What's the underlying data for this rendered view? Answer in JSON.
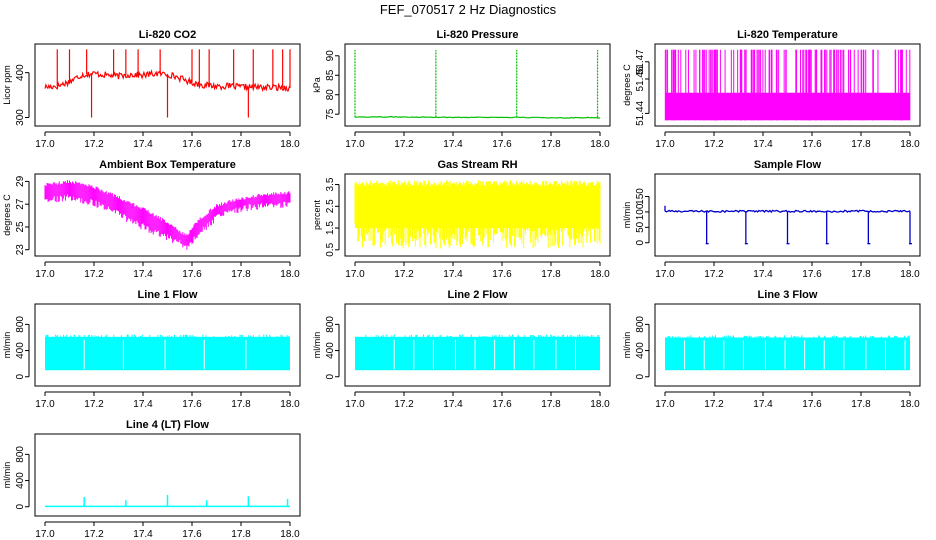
{
  "figure": {
    "title": "FEF_070517  2 Hz Diagnostics"
  },
  "chart_data": [
    {
      "type": "line",
      "title": "Li-820 CO2",
      "xlabel": "",
      "ylabel": "Licor ppm",
      "color": "#ff0000",
      "xlim": [
        17.0,
        18.0
      ],
      "ylim": [
        290,
        455
      ],
      "xticks": [
        17.0,
        17.2,
        17.4,
        17.6,
        17.8,
        18.0
      ],
      "xtick_labels": [
        "17.0",
        "17.2",
        "17.4",
        "17.6",
        "17.8",
        "18.0"
      ],
      "yticks": [
        300,
        400
      ],
      "ytick_labels": [
        "300",
        "400"
      ],
      "series": [
        {
          "x": [
            17.0,
            17.05,
            17.1,
            17.15,
            17.2,
            17.25,
            17.3,
            17.35,
            17.4,
            17.45,
            17.5,
            17.55,
            17.6,
            17.65,
            17.7,
            17.75,
            17.8,
            17.85,
            17.9,
            17.95,
            18.0
          ],
          "values": [
            368,
            370,
            380,
            395,
            398,
            395,
            392,
            396,
            394,
            398,
            397,
            388,
            378,
            372,
            370,
            370,
            368,
            368,
            367,
            367,
            366
          ]
        }
      ],
      "spikes": [
        17.05,
        17.1,
        17.17,
        17.19,
        17.28,
        17.33,
        17.38,
        17.47,
        17.5,
        17.6,
        17.63,
        17.67,
        17.77,
        17.83,
        17.85,
        17.93,
        17.97,
        18.0
      ]
    },
    {
      "type": "line",
      "title": "Li-820 Pressure",
      "xlabel": "",
      "ylabel": "kPa",
      "color": "#00c000",
      "xlim": [
        17.0,
        18.0
      ],
      "ylim": [
        73,
        92
      ],
      "xticks": [
        17.0,
        17.2,
        17.4,
        17.6,
        17.8,
        18.0
      ],
      "xtick_labels": [
        "17.0",
        "17.2",
        "17.4",
        "17.6",
        "17.8",
        "18.0"
      ],
      "yticks": [
        75,
        80,
        85,
        90
      ],
      "ytick_labels": [
        "75",
        "80",
        "85",
        "90"
      ],
      "series": [
        {
          "x": [
            17.0,
            17.2,
            17.4,
            17.6,
            17.8,
            18.0
          ],
          "values": [
            74.3,
            74.3,
            74.2,
            74.2,
            74.1,
            74.1
          ]
        }
      ],
      "spikes": [
        17.0,
        17.33,
        17.66,
        17.99
      ]
    },
    {
      "type": "bar",
      "title": "Li-820 Temperature",
      "xlabel": "",
      "ylabel": "degrees C",
      "color": "#ff00ff",
      "xlim": [
        17.0,
        18.0
      ],
      "ylim": [
        51.435,
        51.478
      ],
      "xticks": [
        17.0,
        17.2,
        17.4,
        17.6,
        17.8,
        18.0
      ],
      "xtick_labels": [
        "17.0",
        "17.2",
        "17.4",
        "17.6",
        "17.8",
        "18.0"
      ],
      "yticks": [
        51.44,
        51.46,
        51.47
      ],
      "ytick_labels": [
        "51.44",
        "51.46",
        "51.47"
      ],
      "levels": [
        51.436,
        51.452,
        51.477
      ]
    },
    {
      "type": "area",
      "title": "Ambient Box Temperature",
      "xlabel": "",
      "ylabel": "degrees C",
      "color": "#ff00ff",
      "xlim": [
        17.0,
        18.0
      ],
      "ylim": [
        22.8,
        29.3
      ],
      "xticks": [
        17.0,
        17.2,
        17.4,
        17.6,
        17.8,
        18.0
      ],
      "xtick_labels": [
        "17.0",
        "17.2",
        "17.4",
        "17.6",
        "17.8",
        "18.0"
      ],
      "yticks": [
        23,
        25,
        27,
        29
      ],
      "ytick_labels": [
        "23",
        "25",
        "27",
        "29"
      ],
      "series": [
        {
          "name": "upper",
          "x": [
            17.0,
            17.1,
            17.2,
            17.3,
            17.4,
            17.5,
            17.55,
            17.58,
            17.62,
            17.7,
            17.8,
            17.9,
            18.0
          ],
          "values": [
            28.7,
            29.0,
            28.5,
            27.6,
            26.6,
            25.4,
            24.6,
            24.3,
            25.5,
            26.9,
            27.5,
            27.9,
            28.0
          ]
        },
        {
          "name": "lower",
          "x": [
            17.0,
            17.1,
            17.2,
            17.3,
            17.4,
            17.5,
            17.55,
            17.58,
            17.62,
            17.7,
            17.8,
            17.9,
            18.0
          ],
          "values": [
            27.3,
            27.6,
            27.1,
            26.1,
            25.0,
            24.1,
            23.6,
            23.2,
            24.3,
            25.8,
            26.6,
            26.9,
            27.0
          ]
        }
      ]
    },
    {
      "type": "area",
      "title": "Gas Stream RH",
      "xlabel": "",
      "ylabel": "percent",
      "color": "#ffff00",
      "xlim": [
        17.0,
        18.0
      ],
      "ylim": [
        0.4,
        3.8
      ],
      "xticks": [
        17.0,
        17.2,
        17.4,
        17.6,
        17.8,
        18.0
      ],
      "xtick_labels": [
        "17.0",
        "17.2",
        "17.4",
        "17.6",
        "17.8",
        "18.0"
      ],
      "yticks": [
        0.5,
        1.5,
        2.5,
        3.5
      ],
      "ytick_labels": [
        "0.5",
        "1.5",
        "2.5",
        "3.5"
      ],
      "series": [
        {
          "name": "upper",
          "x": [
            17.0,
            18.0
          ],
          "values": [
            3.55,
            3.55
          ]
        },
        {
          "name": "lower",
          "x": [
            17.0,
            18.0
          ],
          "values": [
            0.55,
            0.55
          ]
        }
      ]
    },
    {
      "type": "line",
      "title": "Sample Flow",
      "xlabel": "",
      "ylabel": "ml/min",
      "color": "#0000cc",
      "xlim": [
        17.0,
        18.0
      ],
      "ylim": [
        -30,
        210
      ],
      "xticks": [
        17.0,
        17.2,
        17.4,
        17.6,
        17.8,
        18.0
      ],
      "xtick_labels": [
        "17.0",
        "17.2",
        "17.4",
        "17.6",
        "17.8",
        "18.0"
      ],
      "yticks": [
        0,
        50,
        100,
        150
      ],
      "ytick_labels": [
        "0",
        "50",
        "100",
        "150"
      ],
      "series": [
        {
          "x": [
            17.0,
            18.0
          ],
          "values": [
            102,
            102
          ]
        }
      ],
      "dips": [
        17.17,
        17.33,
        17.5,
        17.66,
        17.83,
        18.0
      ]
    },
    {
      "type": "area",
      "title": "Line 1 Flow",
      "xlabel": "",
      "ylabel": "ml/min",
      "color": "#00ffff",
      "xlim": [
        17.0,
        18.0
      ],
      "ylim": [
        -80,
        1050
      ],
      "xticks": [
        17.0,
        17.2,
        17.4,
        17.6,
        17.8,
        18.0
      ],
      "xtick_labels": [
        "17.0",
        "17.2",
        "17.4",
        "17.6",
        "17.8",
        "18.0"
      ],
      "yticks": [
        0,
        400,
        800
      ],
      "ytick_labels": [
        "0",
        "400",
        "800"
      ],
      "series": [
        {
          "name": "upper",
          "x": [
            17.0,
            18.0
          ],
          "values": [
            610,
            610
          ]
        },
        {
          "name": "lower",
          "x": [
            17.0,
            18.0
          ],
          "values": [
            100,
            100
          ]
        }
      ],
      "gaps": [
        17.16,
        17.32,
        17.49,
        17.65,
        17.82
      ]
    },
    {
      "type": "area",
      "title": "Line 2 Flow",
      "xlabel": "",
      "ylabel": "ml/min",
      "color": "#00ffff",
      "xlim": [
        17.0,
        18.0
      ],
      "ylim": [
        -80,
        1050
      ],
      "xticks": [
        17.0,
        17.2,
        17.4,
        17.6,
        17.8,
        18.0
      ],
      "xtick_labels": [
        "17.0",
        "17.2",
        "17.4",
        "17.6",
        "17.8",
        "18.0"
      ],
      "yticks": [
        0,
        400,
        800
      ],
      "ytick_labels": [
        "0",
        "400",
        "800"
      ],
      "series": [
        {
          "name": "upper",
          "x": [
            17.0,
            18.0
          ],
          "values": [
            610,
            610
          ]
        },
        {
          "name": "lower",
          "x": [
            17.0,
            18.0
          ],
          "values": [
            100,
            100
          ]
        }
      ],
      "gaps": [
        17.16,
        17.24,
        17.32,
        17.41,
        17.49,
        17.57,
        17.65,
        17.73,
        17.82,
        17.9
      ]
    },
    {
      "type": "area",
      "title": "Line 3 Flow",
      "xlabel": "",
      "ylabel": "ml/min",
      "color": "#00ffff",
      "xlim": [
        17.0,
        18.0
      ],
      "ylim": [
        -80,
        1050
      ],
      "xticks": [
        17.0,
        17.2,
        17.4,
        17.6,
        17.8,
        18.0
      ],
      "xtick_labels": [
        "17.0",
        "17.2",
        "17.4",
        "17.6",
        "17.8",
        "18.0"
      ],
      "yticks": [
        0,
        400,
        800
      ],
      "ytick_labels": [
        "0",
        "400",
        "800"
      ],
      "series": [
        {
          "name": "upper",
          "x": [
            17.0,
            18.0
          ],
          "values": [
            600,
            600
          ]
        },
        {
          "name": "lower",
          "x": [
            17.0,
            18.0
          ],
          "values": [
            100,
            100
          ]
        }
      ],
      "gaps": [
        17.08,
        17.16,
        17.24,
        17.32,
        17.41,
        17.49,
        17.57,
        17.65,
        17.73,
        17.82,
        17.9,
        17.98
      ]
    },
    {
      "type": "line",
      "title": "Line 4 (LT) Flow",
      "xlabel": "",
      "ylabel": "ml/min",
      "color": "#00ffff",
      "xlim": [
        17.0,
        18.0
      ],
      "ylim": [
        -80,
        1050
      ],
      "xticks": [
        17.0,
        17.2,
        17.4,
        17.6,
        17.8,
        18.0
      ],
      "xtick_labels": [
        "17.0",
        "17.2",
        "17.4",
        "17.6",
        "17.8",
        "18.0"
      ],
      "yticks": [
        0,
        400,
        800
      ],
      "ytick_labels": [
        "0",
        "400",
        "800"
      ],
      "series": [
        {
          "x": [
            17.0,
            18.0
          ],
          "values": [
            5,
            5
          ]
        }
      ],
      "spikes": [
        17.16,
        17.33,
        17.5,
        17.66,
        17.83,
        17.99
      ],
      "spike_heights": [
        150,
        100,
        180,
        100,
        160,
        120
      ]
    }
  ]
}
